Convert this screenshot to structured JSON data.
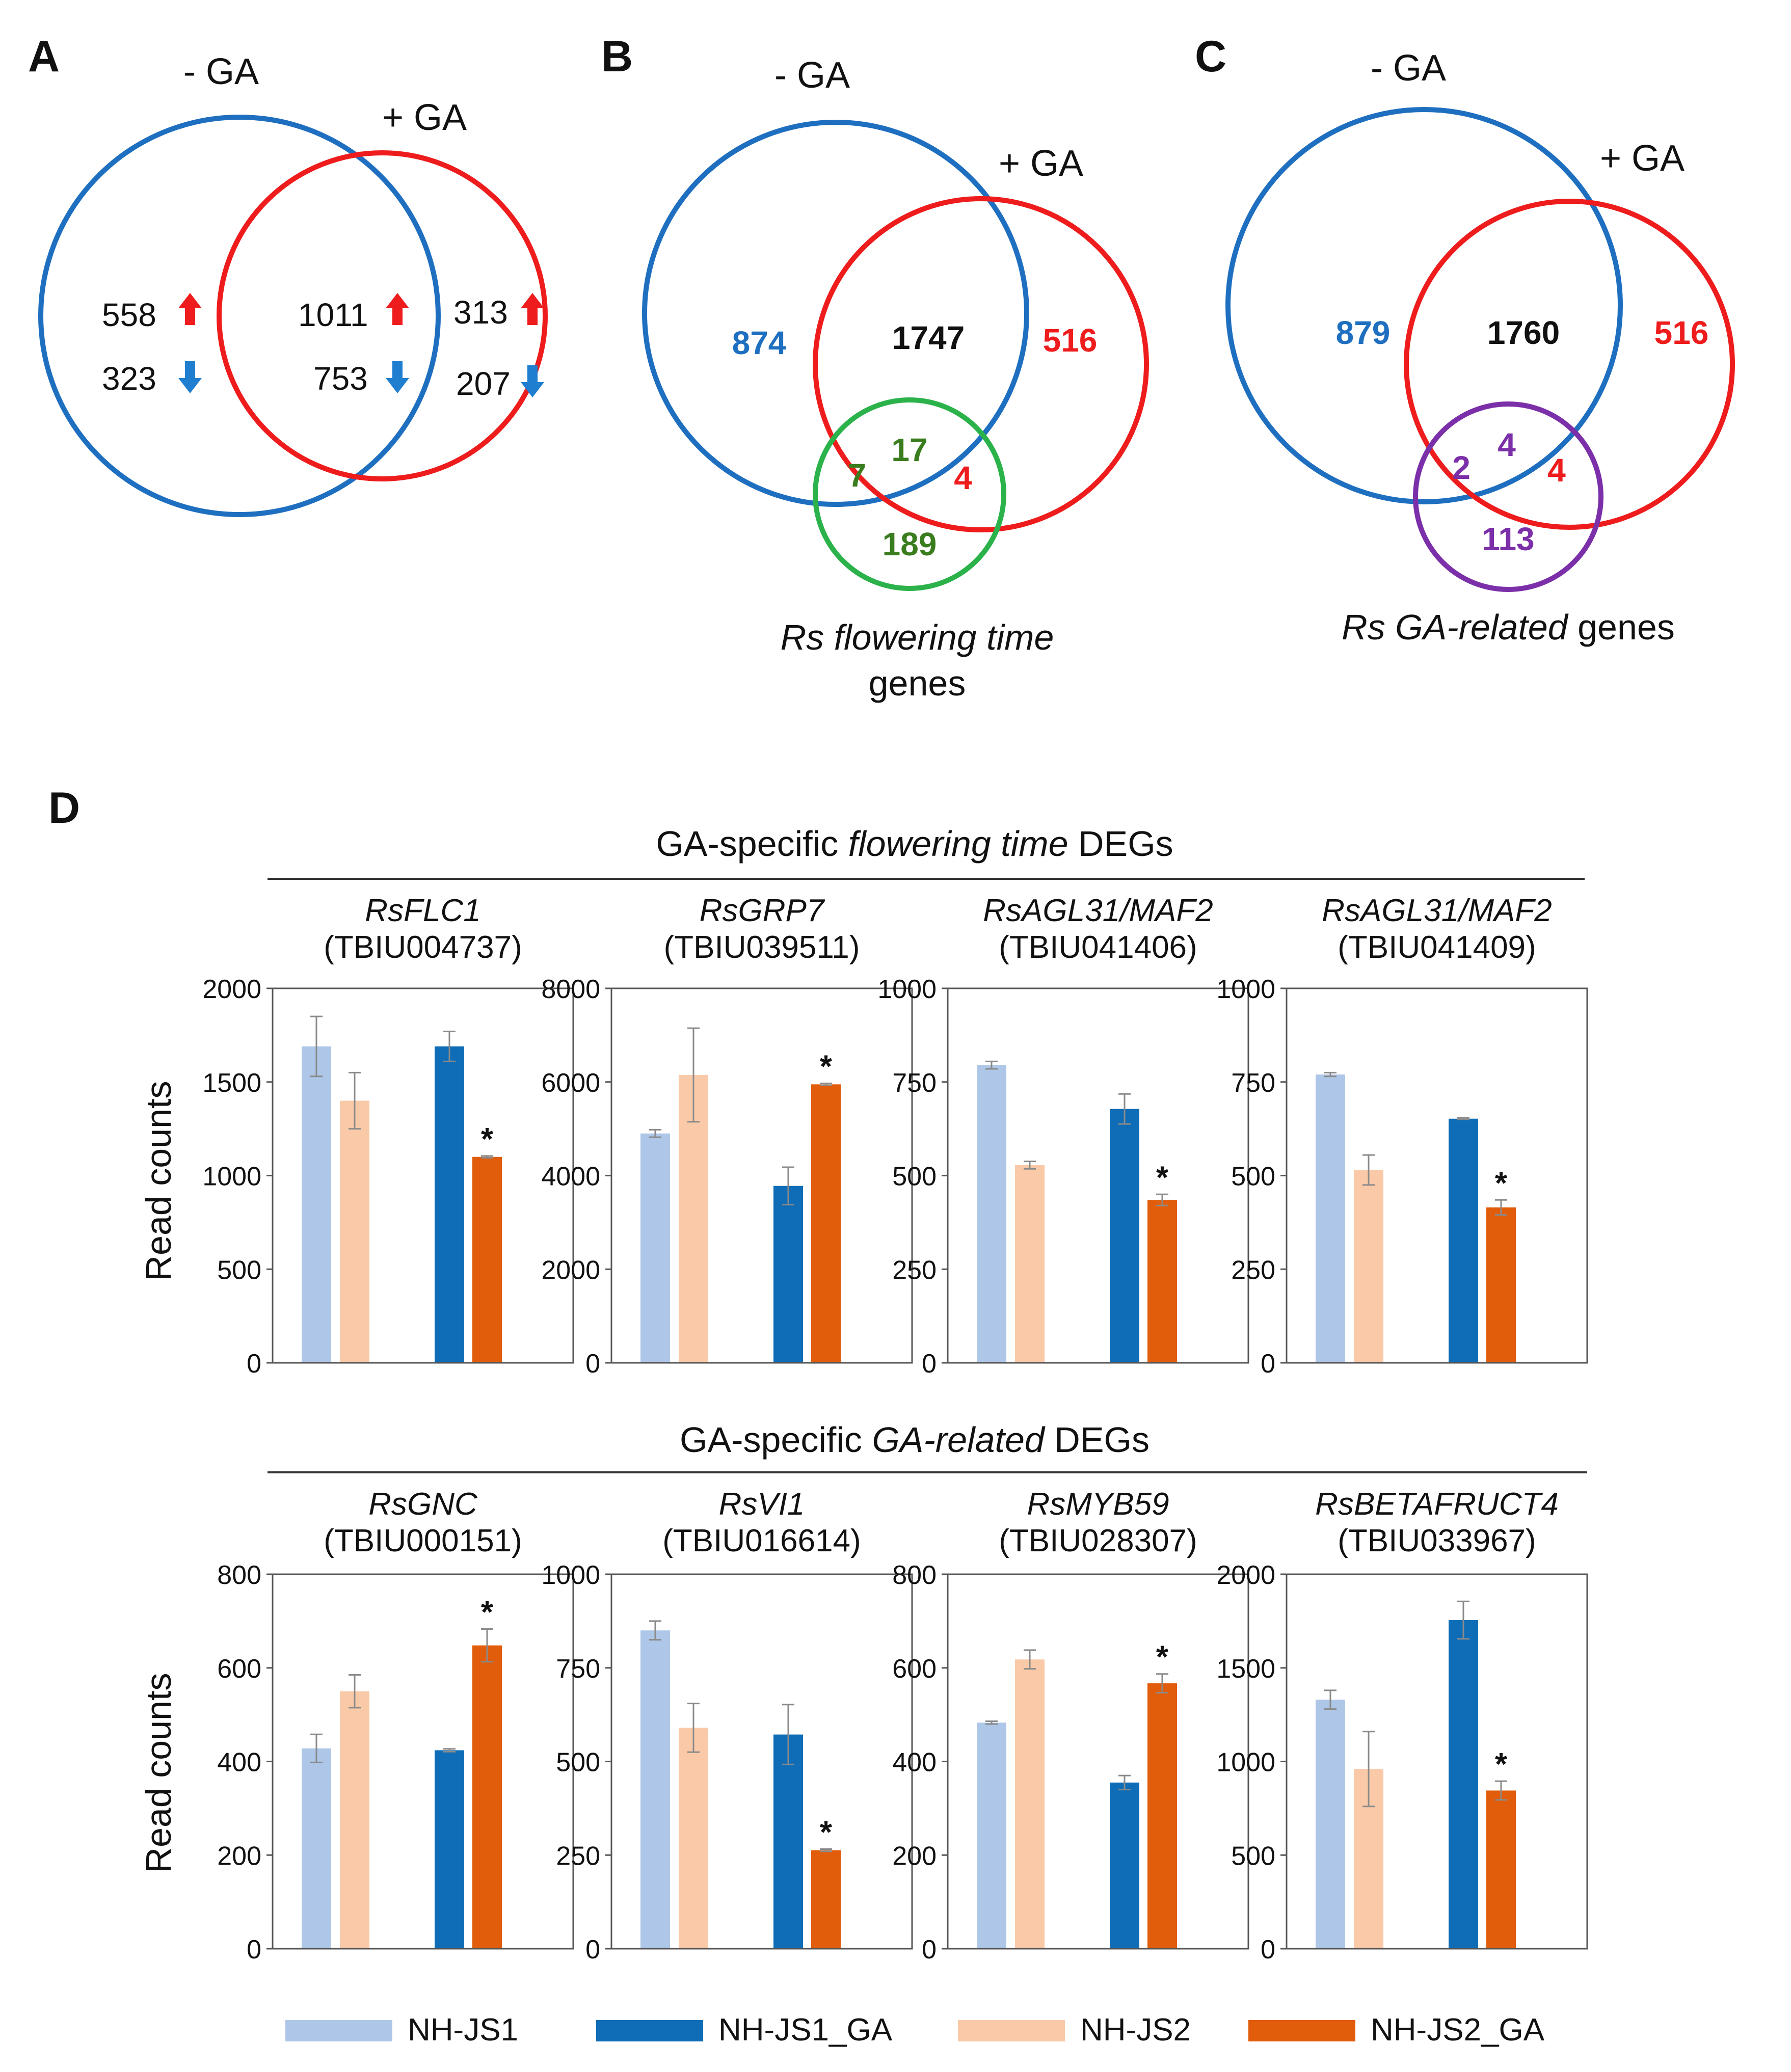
{
  "colors": {
    "minus_ga": "#1f6fc0",
    "plus_ga": "#ee1c1c",
    "flowering": "#2bb24a",
    "flowering_text": "#3a7d1e",
    "ga_related": "#7b2fa8",
    "black": "#111111",
    "NH-JS1": "#aec7e8",
    "NH-JS1_GA": "#0e6db6",
    "NH-JS2": "#fac9a8",
    "NH-JS2_GA": "#e15d0b",
    "up_arrow": "#ee1c1c",
    "down_arrow": "#1f7ed0"
  },
  "panel_a": {
    "letter": "A",
    "label_minus": "- GA",
    "label_plus": "+ GA",
    "only_minus_up": "558",
    "only_minus_down": "323",
    "both_up": "1011",
    "both_down": "753",
    "only_plus_up": "313",
    "only_plus_down": "207"
  },
  "panel_b": {
    "letter": "B",
    "label_minus": "- GA",
    "label_plus": "+ GA",
    "only_minus": "874",
    "both": "1747",
    "only_plus": "516",
    "third_minus": "7",
    "third_all": "17",
    "third_plus": "4",
    "third_only": "189",
    "caption_line1": "Rs flowering time",
    "caption_line2": "genes"
  },
  "panel_c": {
    "letter": "C",
    "label_minus": "- GA",
    "label_plus": "+ GA",
    "only_minus": "879",
    "both": "1760",
    "only_plus": "516",
    "third_minus": "2",
    "third_all": "4",
    "third_plus": "4",
    "third_only": "113",
    "caption_italic": "Rs GA-related",
    "caption_rest": " genes"
  },
  "panel_d": {
    "letter": "D",
    "row1_title_pre": "GA-specific ",
    "row1_title_italic": "flowering time",
    "row1_title_post": " DEGs",
    "row2_title_pre": "GA-specific ",
    "row2_title_italic": "GA-related",
    "row2_title_post": " DEGs",
    "ylabel": "Read counts"
  },
  "chart_data": [
    {
      "type": "bar",
      "gene": "RsFLC1",
      "id": "(TBIU004737)",
      "ylim": [
        0,
        2000
      ],
      "ticks": [
        "0",
        "500",
        "1000",
        "1500",
        "2000"
      ],
      "categories": [
        "NH-JS1",
        "NH-JS2",
        "NH-JS1_GA",
        "NH-JS2_GA"
      ],
      "values": [
        1690,
        1400,
        1690,
        1100
      ],
      "errors": [
        160,
        150,
        80,
        5
      ],
      "star": 3
    },
    {
      "type": "bar",
      "gene": "RsGRP7",
      "id": "(TBIU039511)",
      "ylim": [
        0,
        8000
      ],
      "ticks": [
        "0",
        "2000",
        "4000",
        "6000",
        "8000"
      ],
      "categories": [
        "NH-JS1",
        "NH-JS2",
        "NH-JS1_GA",
        "NH-JS2_GA"
      ],
      "values": [
        4900,
        6150,
        3780,
        5950
      ],
      "errors": [
        80,
        1000,
        400,
        20
      ],
      "star": 3
    },
    {
      "type": "bar",
      "gene": "RsAGL31/MAF2",
      "id": "(TBIU041406)",
      "ylim": [
        0,
        1000
      ],
      "ticks": [
        "0",
        "250",
        "500",
        "750",
        "1000"
      ],
      "categories": [
        "NH-JS1",
        "NH-JS2",
        "NH-JS1_GA",
        "NH-JS2_GA"
      ],
      "values": [
        795,
        528,
        678,
        435
      ],
      "errors": [
        10,
        10,
        40,
        15
      ],
      "star": 3
    },
    {
      "type": "bar",
      "gene": "RsAGL31/MAF2",
      "id": "(TBIU041409)",
      "ylim": [
        0,
        1000
      ],
      "ticks": [
        "0",
        "250",
        "500",
        "750",
        "1000"
      ],
      "categories": [
        "NH-JS1",
        "NH-JS2",
        "NH-JS1_GA",
        "NH-JS2_GA"
      ],
      "values": [
        770,
        515,
        652,
        415
      ],
      "errors": [
        5,
        40,
        2,
        20
      ],
      "star": 3
    },
    {
      "type": "bar",
      "gene": "RsGNC",
      "id": "(TBIU000151)",
      "ylim": [
        0,
        800
      ],
      "ticks": [
        "0",
        "200",
        "400",
        "600",
        "800"
      ],
      "categories": [
        "NH-JS1",
        "NH-JS2",
        "NH-JS1_GA",
        "NH-JS2_GA"
      ],
      "values": [
        428,
        550,
        424,
        648
      ],
      "errors": [
        30,
        35,
        3,
        35
      ],
      "star": 3
    },
    {
      "type": "bar",
      "gene": "RsVI1",
      "id": "(TBIU016614)",
      "ylim": [
        0,
        1000
      ],
      "ticks": [
        "0",
        "250",
        "500",
        "750",
        "1000"
      ],
      "categories": [
        "NH-JS1",
        "NH-JS2",
        "NH-JS1_GA",
        "NH-JS2_GA"
      ],
      "values": [
        850,
        590,
        572,
        263
      ],
      "errors": [
        25,
        65,
        80,
        3
      ],
      "star": 3
    },
    {
      "type": "bar",
      "gene": "RsMYB59",
      "id": "(TBIU028307)",
      "ylim": [
        0,
        800
      ],
      "ticks": [
        "0",
        "200",
        "400",
        "600",
        "800"
      ],
      "categories": [
        "NH-JS1",
        "NH-JS2",
        "NH-JS1_GA",
        "NH-JS2_GA"
      ],
      "values": [
        483,
        618,
        355,
        567
      ],
      "errors": [
        3,
        20,
        15,
        20
      ],
      "star": 3
    },
    {
      "type": "bar",
      "gene": "RsBETAFRUCT4",
      "id": "(TBIU033967)",
      "ylim": [
        0,
        2000
      ],
      "ticks": [
        "0",
        "500",
        "1000",
        "1500",
        "2000"
      ],
      "categories": [
        "NH-JS1",
        "NH-JS2",
        "NH-JS1_GA",
        "NH-JS2_GA"
      ],
      "values": [
        1330,
        960,
        1755,
        845
      ],
      "errors": [
        50,
        200,
        100,
        50
      ],
      "star": 3
    }
  ],
  "legend": [
    {
      "key": "NH-JS1",
      "label": "NH-JS1"
    },
    {
      "key": "NH-JS1_GA",
      "label": "NH-JS1_GA"
    },
    {
      "key": "NH-JS2",
      "label": "NH-JS2"
    },
    {
      "key": "NH-JS2_GA",
      "label": "NH-JS2_GA"
    }
  ],
  "star_symbol": "*"
}
